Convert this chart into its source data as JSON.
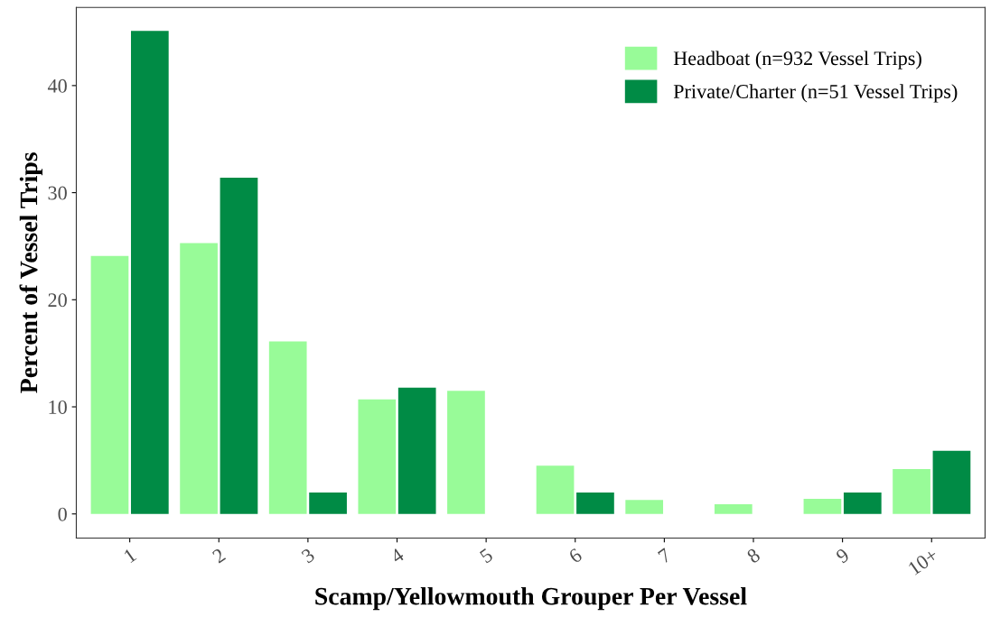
{
  "chart_data": {
    "type": "bar",
    "xlabel": "Scamp/Yellowmouth Grouper Per Vessel",
    "ylabel": "Percent of Vessel Trips",
    "categories": [
      "1",
      "2",
      "3",
      "4",
      "5",
      "6",
      "7",
      "8",
      "9",
      "10+"
    ],
    "series": [
      {
        "name": "Headboat (n=932 Vessel Trips)",
        "color": "#98fb98",
        "values": [
          24.1,
          25.3,
          16.1,
          10.7,
          11.5,
          4.5,
          1.3,
          0.9,
          1.4,
          4.2
        ]
      },
      {
        "name": "Private/Charter (n=51 Vessel Trips)",
        "color": "#008b45",
        "values": [
          45.1,
          31.4,
          2.0,
          11.8,
          null,
          2.0,
          null,
          null,
          2.0,
          5.9
        ]
      }
    ],
    "ylim": [
      -2.25,
      47.3
    ],
    "yticks": [
      0,
      10,
      20,
      30,
      40
    ],
    "grid": false,
    "legend": "top right"
  }
}
